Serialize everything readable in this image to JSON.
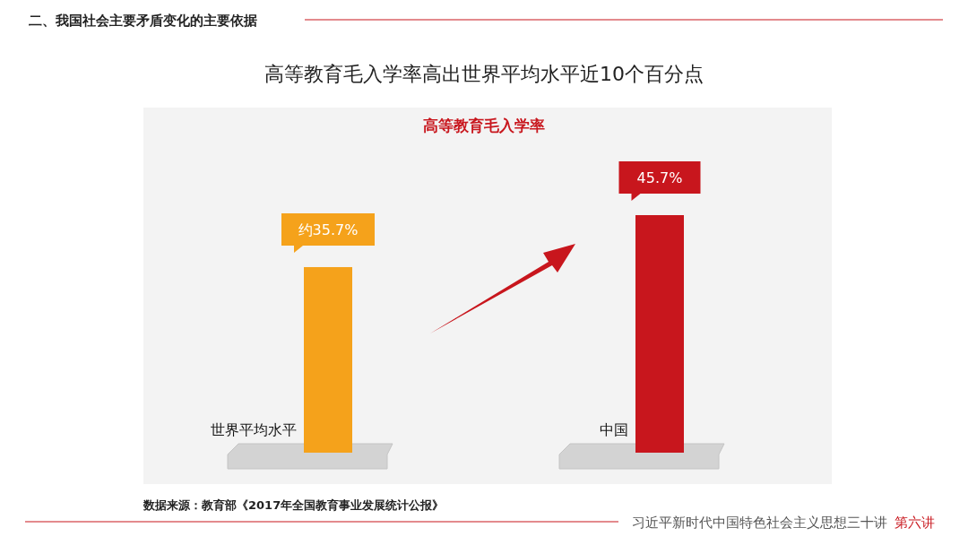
{
  "chart_data": {
    "type": "bar",
    "title": "高等教育毛入学率高出世界平均水平近10个百分点",
    "subtitle": "高等教育毛入学率",
    "categories": [
      "世界平均水平",
      "中国"
    ],
    "values": [
      35.7,
      45.7
    ],
    "colors": [
      "#f5a21b",
      "#c8161d"
    ],
    "value_labels": [
      "约35.7%",
      "45.7%"
    ],
    "annotations": [
      "二、我国社会主要矛盾变化的主要依据",
      "数据来源：教育部《2017年全国教育事业发展统计公报》",
      "习近平新时代中国特色社会主义思想三十讲",
      "第六讲"
    ]
  }
}
